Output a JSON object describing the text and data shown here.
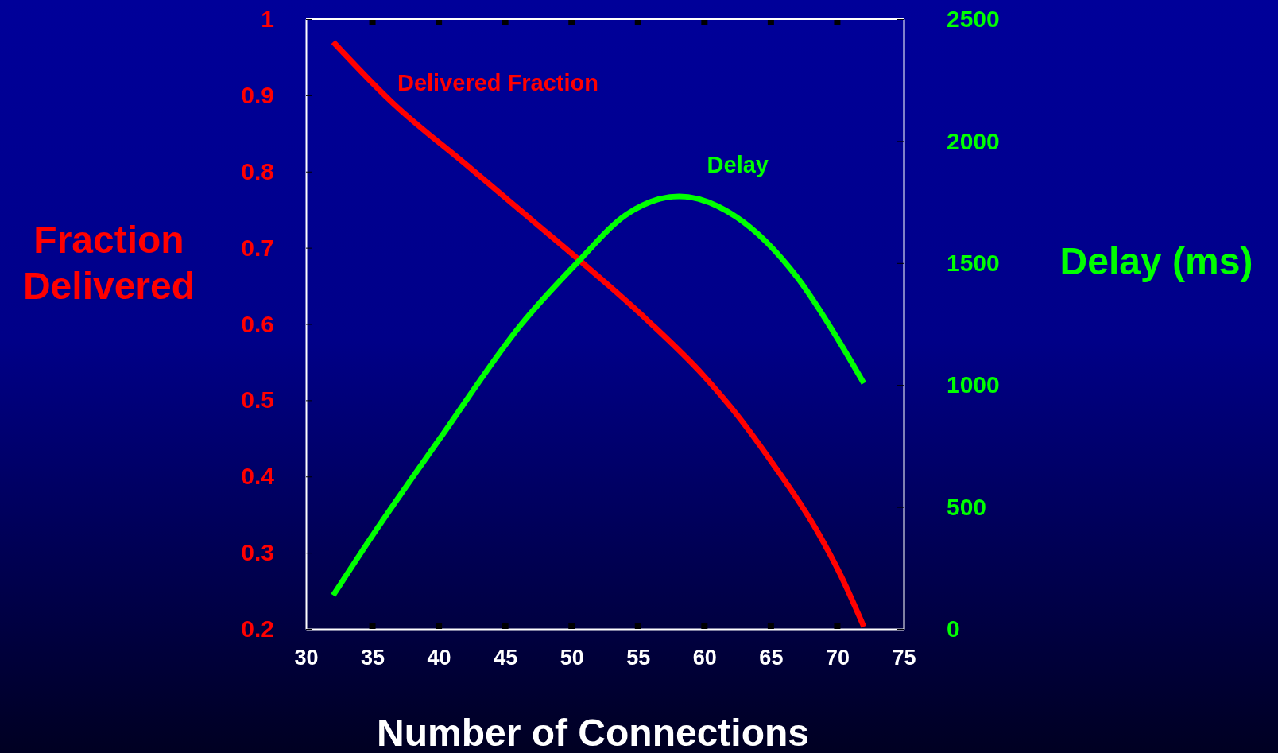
{
  "chart_data": {
    "type": "line",
    "xlabel": "Number of Connections",
    "ylabel": "Fraction\nDelivered",
    "y2label": "Delay (ms)",
    "xlim": [
      30,
      75
    ],
    "xticks": [
      30,
      35,
      40,
      45,
      50,
      55,
      60,
      65,
      70,
      75
    ],
    "ylim": [
      0.2,
      1
    ],
    "yticks": [
      0.2,
      0.3,
      0.4,
      0.5,
      0.6,
      0.7,
      0.8,
      0.9,
      1
    ],
    "y2lim": [
      0,
      2500
    ],
    "y2ticks": [
      0,
      500,
      1000,
      1500,
      2000,
      2500
    ],
    "legend": false,
    "grid": false,
    "marker": "none",
    "line_style": "solid",
    "series": [
      {
        "name": "Delivered Fraction",
        "color": "#ff0000",
        "x": [
          32.05,
          36.4,
          42.2,
          47.1,
          50.5,
          55.7,
          59.9,
          62.4,
          65.1,
          68.5,
          70.3,
          72.0
        ],
        "values": [
          0.97,
          0.892,
          0.807,
          0.735,
          0.685,
          0.605,
          0.533,
          0.482,
          0.418,
          0.328,
          0.269,
          0.203
        ]
      },
      {
        "name": "Delay",
        "color": "#00ff00",
        "axis": "y2",
        "x": [
          32.05,
          35.2,
          40.1,
          46.2,
          50.5,
          54.1,
          58.1,
          62.4,
          67.0,
          70.3,
          72.0
        ],
        "values": [
          138,
          399,
          782,
          1248,
          1506,
          1698,
          1773,
          1689,
          1440,
          1165,
          1007
        ]
      }
    ]
  }
}
